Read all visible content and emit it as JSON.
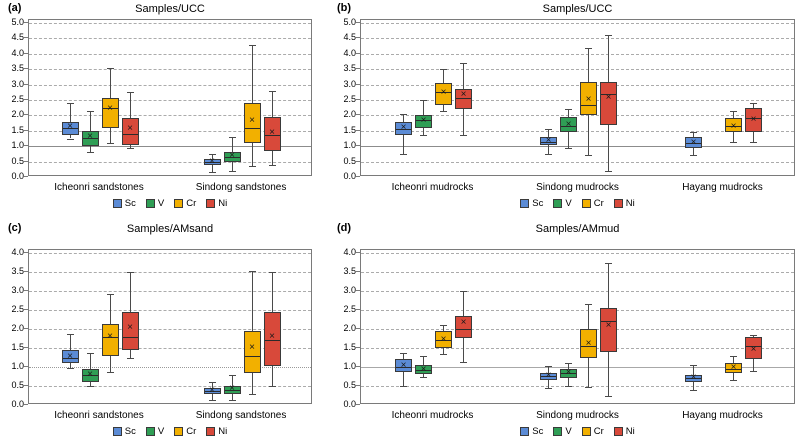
{
  "legend": {
    "items": [
      {
        "label": "Sc",
        "color": "#5b8bd5"
      },
      {
        "label": "V",
        "color": "#2f9e55"
      },
      {
        "label": "Cr",
        "color": "#f2b000"
      },
      {
        "label": "Ni",
        "color": "#d8493a"
      }
    ]
  },
  "chart_data": [
    {
      "type": "box",
      "panel": "(a)",
      "title": "Samples/UCC",
      "ylim": [
        0,
        5
      ],
      "ystep": 0.5,
      "yticks": [
        "5.0",
        "4.5",
        "4.0",
        "3.5",
        "3.0",
        "2.5",
        "2.0",
        "1.5",
        "1.0",
        "0.5",
        "0.0"
      ],
      "ref_line": 1.0,
      "ref_style": "solid",
      "grid": "dashed",
      "legend_labels": [
        "Sc",
        "V",
        "Cr",
        "Ni"
      ],
      "groups": [
        {
          "name": "Icheonri sandstones",
          "boxes": [
            {
              "series": "Sc",
              "whisker_low": 1.25,
              "q1": 1.35,
              "median": 1.6,
              "mean": 1.63,
              "q3": 1.8,
              "whisker_high": 2.4
            },
            {
              "series": "V",
              "whisker_low": 0.8,
              "q1": 1.0,
              "median": 1.27,
              "mean": 1.3,
              "q3": 1.5,
              "whisker_high": 2.15
            },
            {
              "series": "Cr",
              "whisker_low": 1.1,
              "q1": 1.6,
              "median": 2.25,
              "mean": 2.2,
              "q3": 2.55,
              "whisker_high": 3.55
            },
            {
              "series": "Ni",
              "whisker_low": 0.95,
              "q1": 1.05,
              "median": 1.4,
              "mean": 1.55,
              "q3": 1.9,
              "whisker_high": 2.75
            }
          ]
        },
        {
          "name": "Sindong sandstones",
          "boxes": [
            {
              "series": "Sc",
              "whisker_low": 0.15,
              "q1": 0.4,
              "median": 0.5,
              "mean": 0.5,
              "q3": 0.6,
              "whisker_high": 0.75
            },
            {
              "series": "V",
              "whisker_low": 0.2,
              "q1": 0.5,
              "median": 0.65,
              "mean": 0.67,
              "q3": 0.8,
              "whisker_high": 1.3
            },
            {
              "series": "Cr",
              "whisker_low": 0.35,
              "q1": 1.1,
              "median": 1.6,
              "mean": 1.82,
              "q3": 2.4,
              "whisker_high": 4.3
            },
            {
              "series": "Ni",
              "whisker_low": 0.4,
              "q1": 0.85,
              "median": 1.35,
              "mean": 1.42,
              "q3": 1.95,
              "whisker_high": 2.8
            }
          ]
        }
      ]
    },
    {
      "type": "box",
      "panel": "(b)",
      "title": "Samples/UCC",
      "ylim": [
        0,
        5
      ],
      "ystep": 0.5,
      "yticks": [
        "5.0",
        "4.5",
        "4.0",
        "3.5",
        "3.0",
        "2.5",
        "2.0",
        "1.5",
        "1.0",
        "0.5",
        "0.0"
      ],
      "ref_line": 1.0,
      "ref_style": "solid",
      "grid": "dashed",
      "legend_labels": [
        "Sc",
        "V",
        "Cr",
        "Ni"
      ],
      "groups": [
        {
          "name": "Icheonri mudrocks",
          "boxes": [
            {
              "series": "Sc",
              "whisker_low": 0.75,
              "q1": 1.35,
              "median": 1.55,
              "mean": 1.6,
              "q3": 1.8,
              "whisker_high": 2.05
            },
            {
              "series": "V",
              "whisker_low": 1.35,
              "q1": 1.6,
              "median": 1.85,
              "mean": 1.82,
              "q3": 2.0,
              "whisker_high": 2.5
            },
            {
              "series": "Cr",
              "whisker_low": 2.15,
              "q1": 2.35,
              "median": 2.75,
              "mean": 2.72,
              "q3": 3.05,
              "whisker_high": 3.5
            },
            {
              "series": "Ni",
              "whisker_low": 1.35,
              "q1": 2.2,
              "median": 2.55,
              "mean": 2.65,
              "q3": 2.85,
              "whisker_high": 3.7
            }
          ]
        },
        {
          "name": "Sindong mudrocks",
          "boxes": [
            {
              "series": "Sc",
              "whisker_low": 0.75,
              "q1": 1.05,
              "median": 1.15,
              "mean": 1.18,
              "q3": 1.3,
              "whisker_high": 1.55
            },
            {
              "series": "V",
              "whisker_low": 0.95,
              "q1": 1.45,
              "median": 1.65,
              "mean": 1.68,
              "q3": 1.95,
              "whisker_high": 2.2
            },
            {
              "series": "Cr",
              "whisker_low": 0.7,
              "q1": 2.0,
              "median": 2.35,
              "mean": 2.5,
              "q3": 3.1,
              "whisker_high": 4.2
            },
            {
              "series": "Ni",
              "whisker_low": 0.2,
              "q1": 1.7,
              "median": 2.7,
              "mean": 2.55,
              "q3": 3.1,
              "whisker_high": 4.6
            }
          ]
        },
        {
          "name": "Hayang mudrocks",
          "boxes": [
            {
              "series": "Sc",
              "whisker_low": 0.7,
              "q1": 0.95,
              "median": 1.1,
              "mean": 1.12,
              "q3": 1.3,
              "whisker_high": 1.45
            },
            null,
            {
              "series": "Cr",
              "whisker_low": 1.15,
              "q1": 1.45,
              "median": 1.65,
              "mean": 1.62,
              "q3": 1.9,
              "whisker_high": 2.15
            },
            {
              "series": "Ni",
              "whisker_low": 1.15,
              "q1": 1.45,
              "median": 1.9,
              "mean": 1.85,
              "q3": 2.25,
              "whisker_high": 2.4
            }
          ]
        }
      ]
    },
    {
      "type": "box",
      "panel": "(c)",
      "title": "Samples/AMsand",
      "ylim": [
        0,
        4
      ],
      "ystep": 0.5,
      "yticks": [
        "4.0",
        "3.5",
        "3.0",
        "2.5",
        "2.0",
        "1.5",
        "1.0",
        "0.5",
        "0.0"
      ],
      "ref_line": 1.0,
      "ref_style": "dotted",
      "grid": "dashed",
      "legend_labels": [
        "Sc",
        "V",
        "Cr",
        "Ni"
      ],
      "groups": [
        {
          "name": "Icheonri sandstones",
          "boxes": [
            {
              "series": "Sc",
              "whisker_low": 0.97,
              "q1": 1.1,
              "median": 1.25,
              "mean": 1.27,
              "q3": 1.45,
              "whisker_high": 1.88
            },
            {
              "series": "V",
              "whisker_low": 0.5,
              "q1": 0.6,
              "median": 0.78,
              "mean": 0.8,
              "q3": 0.95,
              "whisker_high": 1.37
            },
            {
              "series": "Cr",
              "whisker_low": 0.87,
              "q1": 1.3,
              "median": 1.8,
              "mean": 1.8,
              "q3": 2.12,
              "whisker_high": 2.93
            },
            {
              "series": "Ni",
              "whisker_low": 1.25,
              "q1": 1.45,
              "median": 1.8,
              "mean": 2.02,
              "q3": 2.45,
              "whisker_high": 3.5
            }
          ]
        },
        {
          "name": "Sindong sandstones",
          "boxes": [
            {
              "series": "Sc",
              "whisker_low": 0.12,
              "q1": 0.3,
              "median": 0.38,
              "mean": 0.38,
              "q3": 0.45,
              "whisker_high": 0.6
            },
            {
              "series": "V",
              "whisker_low": 0.13,
              "q1": 0.3,
              "median": 0.4,
              "mean": 0.42,
              "q3": 0.5,
              "whisker_high": 0.8
            },
            {
              "series": "Cr",
              "whisker_low": 0.28,
              "q1": 0.85,
              "median": 1.3,
              "mean": 1.5,
              "q3": 1.95,
              "whisker_high": 3.52
            },
            {
              "series": "Ni",
              "whisker_low": 0.5,
              "q1": 1.02,
              "median": 1.7,
              "mean": 1.78,
              "q3": 2.45,
              "whisker_high": 3.5
            }
          ]
        }
      ]
    },
    {
      "type": "box",
      "panel": "(d)",
      "title": "Samples/AMmud",
      "ylim": [
        0,
        4
      ],
      "ystep": 0.5,
      "yticks": [
        "4.0",
        "3.5",
        "3.0",
        "2.5",
        "2.0",
        "1.5",
        "1.0",
        "0.5",
        "0.0"
      ],
      "ref_line": 1.0,
      "ref_style": "solid-light",
      "grid": "dashed",
      "legend_labels": [
        "Sc",
        "V",
        "Cr",
        "Ni"
      ],
      "groups": [
        {
          "name": "Icheonri mudrocks",
          "boxes": [
            {
              "series": "Sc",
              "whisker_low": 0.5,
              "q1": 0.87,
              "median": 1.0,
              "mean": 1.03,
              "q3": 1.2,
              "whisker_high": 1.38
            },
            {
              "series": "V",
              "whisker_low": 0.73,
              "q1": 0.82,
              "median": 0.92,
              "mean": 0.93,
              "q3": 1.05,
              "whisker_high": 1.3
            },
            {
              "series": "Cr",
              "whisker_low": 1.33,
              "q1": 1.5,
              "median": 1.72,
              "mean": 1.7,
              "q3": 1.95,
              "whisker_high": 2.1
            },
            {
              "series": "Ni",
              "whisker_low": 1.12,
              "q1": 1.75,
              "median": 2.0,
              "mean": 2.15,
              "q3": 2.35,
              "whisker_high": 3.0
            }
          ]
        },
        {
          "name": "Sindong mudrocks",
          "boxes": [
            {
              "series": "Sc",
              "whisker_low": 0.45,
              "q1": 0.65,
              "median": 0.77,
              "mean": 0.77,
              "q3": 0.85,
              "whisker_high": 1.03
            },
            {
              "series": "V",
              "whisker_low": 0.5,
              "q1": 0.7,
              "median": 0.85,
              "mean": 0.83,
              "q3": 0.95,
              "whisker_high": 1.1
            },
            {
              "series": "Cr",
              "whisker_low": 0.48,
              "q1": 1.25,
              "median": 1.55,
              "mean": 1.6,
              "q3": 2.0,
              "whisker_high": 2.65
            },
            {
              "series": "Ni",
              "whisker_low": 0.25,
              "q1": 1.4,
              "median": 2.2,
              "mean": 2.07,
              "q3": 2.55,
              "whisker_high": 3.75
            }
          ]
        },
        {
          "name": "Hayang mudrocks",
          "boxes": [
            {
              "series": "Sc",
              "whisker_low": 0.4,
              "q1": 0.6,
              "median": 0.72,
              "mean": 0.72,
              "q3": 0.8,
              "whisker_high": 1.05
            },
            null,
            {
              "series": "Cr",
              "whisker_low": 0.65,
              "q1": 0.85,
              "median": 0.95,
              "mean": 0.97,
              "q3": 1.1,
              "whisker_high": 1.3
            },
            {
              "series": "Ni",
              "whisker_low": 0.9,
              "q1": 1.2,
              "median": 1.55,
              "mean": 1.45,
              "q3": 1.8,
              "whisker_high": 1.85
            }
          ]
        }
      ]
    }
  ]
}
